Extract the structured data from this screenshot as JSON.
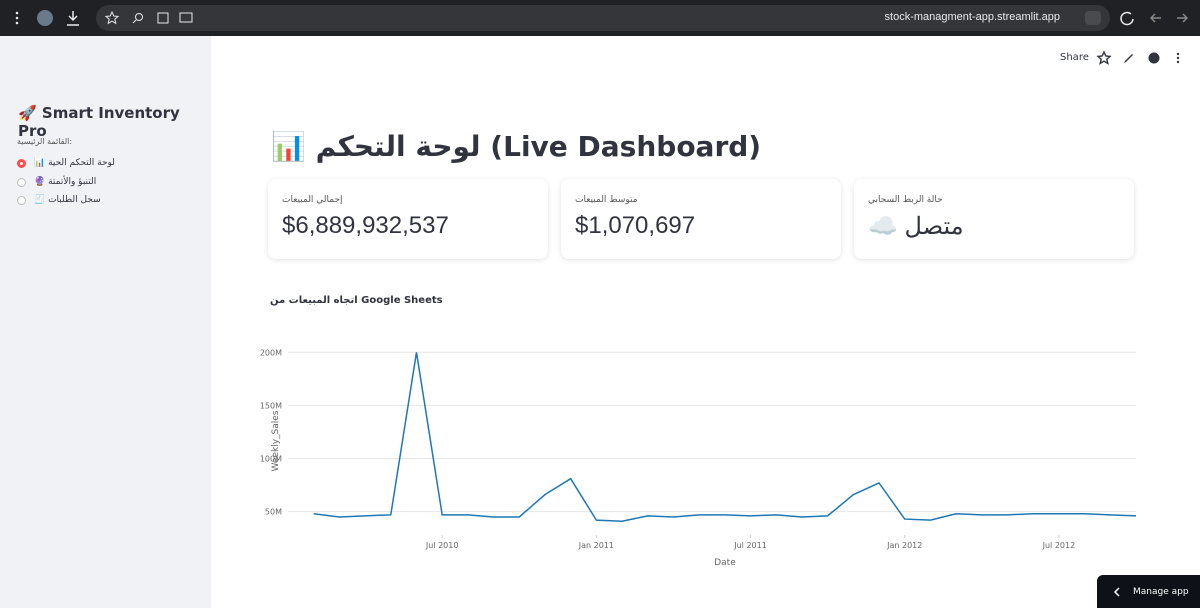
{
  "browser": {
    "url": "stock-managment-app.streamlit.app"
  },
  "toolbar": {
    "share": "Share"
  },
  "sidebar": {
    "title": "🚀 Smart Inventory Pro",
    "menu_label": ":القائمة الرئيسية",
    "options": [
      "📊 لوحة التحكم الحية",
      "🔮 التنبؤ والأتمتة",
      "🧾 سجل الطلبات"
    ]
  },
  "header": {
    "title": "📊 لوحة التحكم (Live Dashboard)"
  },
  "metrics": [
    {
      "label": "إجمالي المبيعات",
      "value": "$6,889,932,537"
    },
    {
      "label": "متوسط المبيعات",
      "value": "$1,070,697"
    },
    {
      "label": "حالة الربط السحابي",
      "value": "متصل ☁️"
    }
  ],
  "chart_data": {
    "type": "line",
    "title": "اتجاه المبيعات من Google Sheets",
    "x_label": "Date",
    "y_label": "Weekly_Sales",
    "color": "#1f77b4",
    "x": [
      "2010-02",
      "2010-03",
      "2010-04",
      "2010-05",
      "2010-06",
      "2010-07",
      "2010-08",
      "2010-09",
      "2010-10",
      "2010-11",
      "2010-12",
      "2011-01",
      "2011-02",
      "2011-03",
      "2011-04",
      "2011-05",
      "2011-06",
      "2011-07",
      "2011-08",
      "2011-09",
      "2011-10",
      "2011-11",
      "2011-12",
      "2012-01",
      "2012-02",
      "2012-03",
      "2012-04",
      "2012-05",
      "2012-06",
      "2012-07",
      "2012-08",
      "2012-09",
      "2012-10"
    ],
    "values": [
      48000000,
      45000000,
      46000000,
      47000000,
      200000000,
      47000000,
      47000000,
      45000000,
      45000000,
      66000000,
      81000000,
      42000000,
      41000000,
      46000000,
      45000000,
      47000000,
      47000000,
      46000000,
      47000000,
      45000000,
      46000000,
      66000000,
      77000000,
      43000000,
      42000000,
      48000000,
      47000000,
      47000000,
      48000000,
      48000000,
      48000000,
      47000000,
      46000000
    ],
    "xlim": [
      "2010-01",
      "2012-10"
    ],
    "xticks": [
      {
        "value": "2010-07",
        "label": "Jul 2010"
      },
      {
        "value": "2011-01",
        "label": "Jan 2011"
      },
      {
        "value": "2011-07",
        "label": "Jul 2011"
      },
      {
        "value": "2012-01",
        "label": "Jan 2012"
      },
      {
        "value": "2012-07",
        "label": "Jul 2012"
      }
    ],
    "ylim": [
      28000000,
      205000000
    ],
    "yticks": [
      {
        "value": 50000000,
        "label": "50M"
      },
      {
        "value": 100000000,
        "label": "100M"
      },
      {
        "value": 150000000,
        "label": "150M"
      },
      {
        "value": 200000000,
        "label": "200M"
      }
    ],
    "grid": true
  },
  "footer": {
    "manage_app": "Manage app"
  }
}
